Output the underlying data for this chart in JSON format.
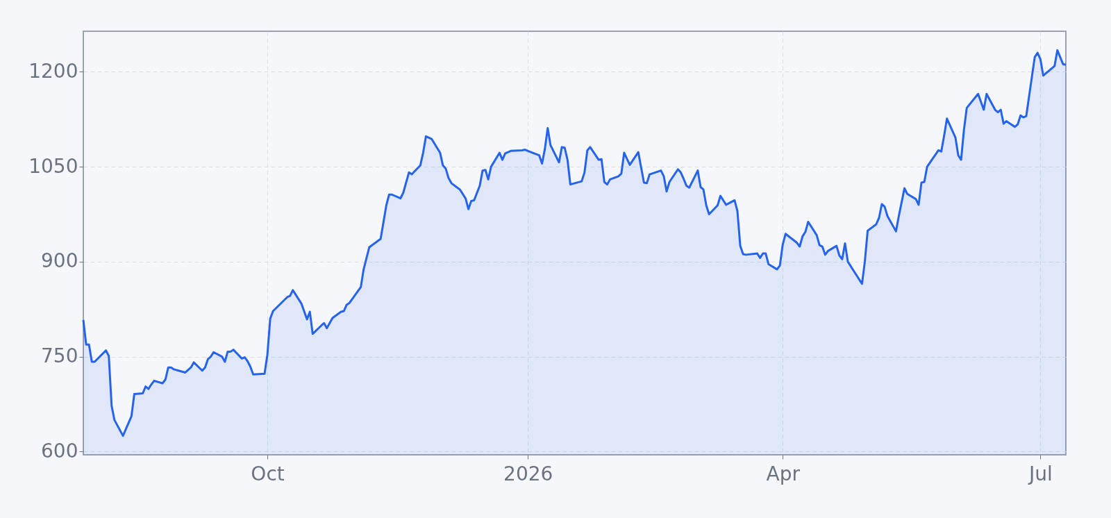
{
  "chart_data": {
    "type": "area",
    "xlim": [
      "2025-07-28",
      "2026-07-10"
    ],
    "ylim": [
      595,
      1264
    ],
    "xticks": [
      {
        "value": "2025-10-01",
        "label": "Oct"
      },
      {
        "value": "2026-01-01",
        "label": "2026"
      },
      {
        "value": "2026-04-01",
        "label": "Apr"
      },
      {
        "value": "2026-07-01",
        "label": "Jul"
      }
    ],
    "yticks": [
      600,
      750,
      900,
      1050,
      1200
    ],
    "grid": true,
    "x": [
      "2025-07-28",
      "2025-07-29",
      "2025-07-30",
      "2025-07-31",
      "2025-08-01",
      "2025-08-05",
      "2025-08-06",
      "2025-08-07",
      "2025-08-08",
      "2025-08-11",
      "2025-08-14",
      "2025-08-15",
      "2025-08-18",
      "2025-08-19",
      "2025-08-20",
      "2025-08-21",
      "2025-08-22",
      "2025-08-25",
      "2025-08-26",
      "2025-08-27",
      "2025-08-28",
      "2025-08-29",
      "2025-09-02",
      "2025-09-04",
      "2025-09-05",
      "2025-09-08",
      "2025-09-09",
      "2025-09-10",
      "2025-09-11",
      "2025-09-12",
      "2025-09-15",
      "2025-09-16",
      "2025-09-17",
      "2025-09-18",
      "2025-09-19",
      "2025-09-22",
      "2025-09-23",
      "2025-09-24",
      "2025-09-25",
      "2025-09-26",
      "2025-09-30",
      "2025-10-01",
      "2025-10-02",
      "2025-10-03",
      "2025-10-08",
      "2025-10-09",
      "2025-10-10",
      "2025-10-13",
      "2025-10-15",
      "2025-10-16",
      "2025-10-17",
      "2025-10-20",
      "2025-10-21",
      "2025-10-22",
      "2025-10-24",
      "2025-10-27",
      "2025-10-28",
      "2025-10-29",
      "2025-10-30",
      "2025-11-03",
      "2025-11-04",
      "2025-11-06",
      "2025-11-10",
      "2025-11-12",
      "2025-11-13",
      "2025-11-14",
      "2025-11-17",
      "2025-11-18",
      "2025-11-20",
      "2025-11-21",
      "2025-11-24",
      "2025-11-25",
      "2025-11-26",
      "2025-11-28",
      "2025-12-01",
      "2025-12-02",
      "2025-12-03",
      "2025-12-04",
      "2025-12-05",
      "2025-12-08",
      "2025-12-09",
      "2025-12-10",
      "2025-12-11",
      "2025-12-12",
      "2025-12-13",
      "2025-12-15",
      "2025-12-16",
      "2025-12-17",
      "2025-12-18",
      "2025-12-19",
      "2025-12-22",
      "2025-12-23",
      "2025-12-24",
      "2025-12-26",
      "2025-12-30",
      "2025-12-31",
      "2026-01-01",
      "2026-01-05",
      "2026-01-06",
      "2026-01-07",
      "2026-01-08",
      "2026-01-09",
      "2026-01-12",
      "2026-01-13",
      "2026-01-14",
      "2026-01-15",
      "2026-01-16",
      "2026-01-20",
      "2026-01-21",
      "2026-01-22",
      "2026-01-23",
      "2026-01-26",
      "2026-01-27",
      "2026-01-28",
      "2026-01-29",
      "2026-01-30",
      "2026-02-02",
      "2026-02-03",
      "2026-02-04",
      "2026-02-06",
      "2026-02-09",
      "2026-02-11",
      "2026-02-12",
      "2026-02-13",
      "2026-02-17",
      "2026-02-18",
      "2026-02-19",
      "2026-02-20",
      "2026-02-23",
      "2026-02-24",
      "2026-02-25",
      "2026-02-26",
      "2026-02-27",
      "2026-03-02",
      "2026-03-03",
      "2026-03-04",
      "2026-03-05",
      "2026-03-06",
      "2026-03-09",
      "2026-03-10",
      "2026-03-11",
      "2026-03-12",
      "2026-03-15",
      "2026-03-16",
      "2026-03-17",
      "2026-03-18",
      "2026-03-19",
      "2026-03-23",
      "2026-03-24",
      "2026-03-25",
      "2026-03-26",
      "2026-03-27",
      "2026-03-30",
      "2026-03-31",
      "2026-04-01",
      "2026-04-02",
      "2026-04-06",
      "2026-04-07",
      "2026-04-08",
      "2026-04-09",
      "2026-04-10",
      "2026-04-13",
      "2026-04-14",
      "2026-04-15",
      "2026-04-16",
      "2026-04-17",
      "2026-04-20",
      "2026-04-21",
      "2026-04-22",
      "2026-04-23",
      "2026-04-24",
      "2026-04-29",
      "2026-04-30",
      "2026-05-01",
      "2026-05-04",
      "2026-05-05",
      "2026-05-06",
      "2026-05-07",
      "2026-05-08",
      "2026-05-11",
      "2026-05-12",
      "2026-05-14",
      "2026-05-15",
      "2026-05-18",
      "2026-05-19",
      "2026-05-20",
      "2026-05-21",
      "2026-05-22",
      "2026-05-26",
      "2026-05-27",
      "2026-05-28",
      "2026-05-29",
      "2026-06-01",
      "2026-06-02",
      "2026-06-03",
      "2026-06-04",
      "2026-06-05",
      "2026-06-09",
      "2026-06-11",
      "2026-06-12",
      "2026-06-15",
      "2026-06-16",
      "2026-06-17",
      "2026-06-18",
      "2026-06-19",
      "2026-06-22",
      "2026-06-23",
      "2026-06-24",
      "2026-06-25",
      "2026-06-26",
      "2026-06-29",
      "2026-06-30",
      "2026-07-01",
      "2026-07-02",
      "2026-07-06",
      "2026-07-07",
      "2026-07-09",
      "2026-07-10"
    ],
    "series": [
      {
        "color": "#2563eb",
        "values": [
          808,
          769,
          769,
          742,
          742,
          760,
          751,
          672,
          650,
          625,
          656,
          691,
          692,
          703,
          699,
          706,
          712,
          708,
          714,
          733,
          733,
          730,
          725,
          733,
          741,
          728,
          733,
          746,
          750,
          757,
          750,
          742,
          758,
          758,
          761,
          747,
          749,
          743,
          734,
          722,
          723,
          753,
          810,
          822,
          844,
          846,
          855,
          834,
          809,
          821,
          786,
          799,
          803,
          795,
          811,
          821,
          822,
          832,
          835,
          860,
          888,
          923,
          936,
          989,
          1006,
          1006,
          1000,
          1009,
          1041,
          1038,
          1052,
          1072,
          1098,
          1094,
          1072,
          1052,
          1047,
          1032,
          1024,
          1014,
          1007,
          1000,
          983,
          996,
          997,
          1020,
          1044,
          1045,
          1030,
          1050,
          1072,
          1061,
          1071,
          1075,
          1076,
          1077,
          1075,
          1068,
          1055,
          1078,
          1111,
          1084,
          1057,
          1081,
          1080,
          1061,
          1022,
          1027,
          1041,
          1076,
          1081,
          1061,
          1062,
          1026,
          1022,
          1030,
          1035,
          1039,
          1072,
          1053,
          1073,
          1025,
          1024,
          1038,
          1044,
          1035,
          1011,
          1026,
          1046,
          1041,
          1031,
          1020,
          1017,
          1044,
          1018,
          1014,
          989,
          975,
          989,
          1004,
          997,
          990,
          997,
          980,
          925,
          912,
          911,
          913,
          906,
          913,
          913,
          896,
          888,
          894,
          927,
          944,
          930,
          924,
          940,
          947,
          963,
          942,
          926,
          924,
          911,
          917,
          925,
          910,
          904,
          929,
          900,
          865,
          900,
          949,
          959,
          969,
          991,
          987,
          972,
          948,
          972,
          1016,
          1007,
          999,
          990,
          1025,
          1026,
          1050,
          1076,
          1074,
          1099,
          1126,
          1096,
          1068,
          1061,
          1108,
          1143,
          1165,
          1140,
          1165,
          1140,
          1136,
          1140,
          1118,
          1122,
          1113,
          1117,
          1131,
          1128,
          1130,
          1223,
          1230,
          1220,
          1194,
          1209,
          1234,
          1212,
          1211
        ]
      }
    ]
  }
}
